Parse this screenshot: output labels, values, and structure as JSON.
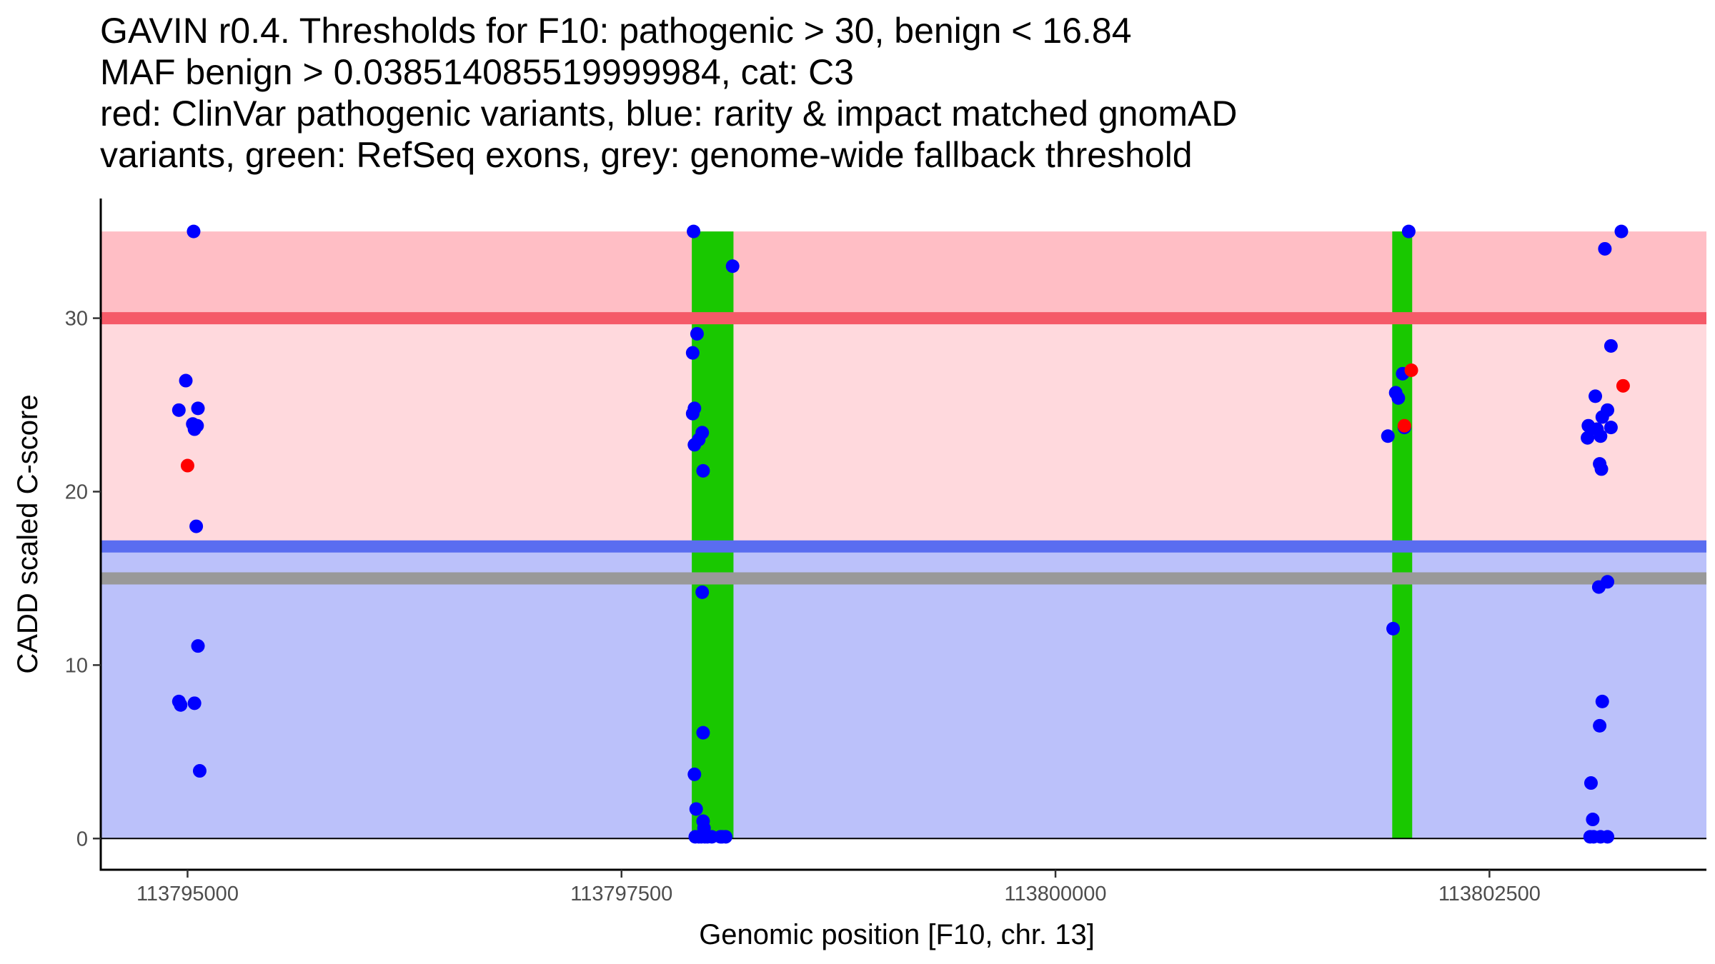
{
  "chart_data": {
    "type": "scatter",
    "title_lines": [
      "GAVIN r0.4. Thresholds for F10: pathogenic > 30, benign < 16.84",
      "MAF benign > 0.038514085519999984, cat: C3",
      "red: ClinVar pathogenic variants, blue: rarity & impact matched gnomAD",
      "variants, green: RefSeq exons, grey: genome-wide fallback threshold"
    ],
    "xlabel": "Genomic position [F10, chr. 13]",
    "ylabel": "CADD scaled C-score",
    "xlim": [
      113794500,
      113803750
    ],
    "ylim": [
      -1.8,
      36.9
    ],
    "x_ticks": [
      113795000,
      113797500,
      113800000,
      113802500
    ],
    "x_tick_labels": [
      "113795000",
      "113797500",
      "113800000",
      "113802500"
    ],
    "y_ticks": [
      0,
      10,
      20,
      30
    ],
    "y_tick_labels": [
      "0",
      "10",
      "20",
      "30"
    ],
    "colors": {
      "pathogenic_zone": "#ffd9dd",
      "pathogenic_upper_zone": "#ffbec5",
      "benign_zone": "#bbc1fa",
      "pathogenic_line": "#f55a68",
      "benign_line": "#5a6df0",
      "fallback_line": "#999999",
      "exon": "#19c800",
      "gnomad_point": "#0000ff",
      "clinvar_point": "#ff0000"
    },
    "zones": {
      "benign": [
        0,
        16.84
      ],
      "pathogenic": [
        16.84,
        30
      ],
      "pathogenic_upper": [
        30,
        35
      ]
    },
    "thresholds": {
      "pathogenic": 30,
      "benign": 16.84,
      "fallback": 15
    },
    "exons": [
      [
        113797905,
        113798145
      ],
      [
        113801940,
        113802055
      ]
    ],
    "series": [
      {
        "name": "gnomAD",
        "color": "#0000ff",
        "points": [
          [
            113795035,
            35
          ],
          [
            113794950,
            24.7
          ],
          [
            113795030,
            23.9
          ],
          [
            113794990,
            26.4
          ],
          [
            113795060,
            24.8
          ],
          [
            113795040,
            23.6
          ],
          [
            113795055,
            23.8
          ],
          [
            113795050,
            18
          ],
          [
            113795060,
            11.1
          ],
          [
            113794950,
            7.9
          ],
          [
            113794960,
            7.7
          ],
          [
            113795040,
            7.8
          ],
          [
            113795070,
            3.9
          ],
          [
            113797915,
            35
          ],
          [
            113797910,
            28
          ],
          [
            113797935,
            29.1
          ],
          [
            113797910,
            24.5
          ],
          [
            113797920,
            24.8
          ],
          [
            113797920,
            22.7
          ],
          [
            113797945,
            23
          ],
          [
            113797965,
            23.4
          ],
          [
            113797970,
            21.2
          ],
          [
            113798140,
            33
          ],
          [
            113797965,
            14.2
          ],
          [
            113797970,
            6.1
          ],
          [
            113797920,
            3.7
          ],
          [
            113797930,
            1.7
          ],
          [
            113797970,
            1
          ],
          [
            113797975,
            0.6
          ],
          [
            113797925,
            0.1
          ],
          [
            113797945,
            0.1
          ],
          [
            113797960,
            0.1
          ],
          [
            113797995,
            0.1
          ],
          [
            113798020,
            0.1
          ],
          [
            113798070,
            0.1
          ],
          [
            113798100,
            0.1
          ],
          [
            113798080,
            0.1
          ],
          [
            113797980,
            0.1
          ],
          [
            113801915,
            23.2
          ],
          [
            113801960,
            25.7
          ],
          [
            113801975,
            25.4
          ],
          [
            113802000,
            26.8
          ],
          [
            113802010,
            23.7
          ],
          [
            113801945,
            12.1
          ],
          [
            113802035,
            35
          ],
          [
            113803165,
            34
          ],
          [
            113803200,
            28.4
          ],
          [
            113803110,
            25.5
          ],
          [
            113803120,
            23.6
          ],
          [
            113803150,
            24.3
          ],
          [
            113803180,
            24.7
          ],
          [
            113803200,
            23.7
          ],
          [
            113803070,
            23.8
          ],
          [
            113803065,
            23.1
          ],
          [
            113803140,
            23.2
          ],
          [
            113803135,
            21.6
          ],
          [
            113803145,
            21.3
          ],
          [
            113803130,
            14.5
          ],
          [
            113803180,
            14.8
          ],
          [
            113803150,
            7.9
          ],
          [
            113803135,
            6.5
          ],
          [
            113803085,
            3.2
          ],
          [
            113803095,
            1.1
          ],
          [
            113803080,
            0.1
          ],
          [
            113803100,
            0.1
          ],
          [
            113803140,
            0.1
          ],
          [
            113803180,
            0.1
          ],
          [
            113803260,
            35
          ]
        ]
      },
      {
        "name": "ClinVar pathogenic",
        "color": "#ff0000",
        "points": [
          [
            113795000,
            21.5
          ],
          [
            113802050,
            27
          ],
          [
            113802010,
            23.8
          ],
          [
            113803270,
            26.1
          ]
        ]
      }
    ]
  }
}
